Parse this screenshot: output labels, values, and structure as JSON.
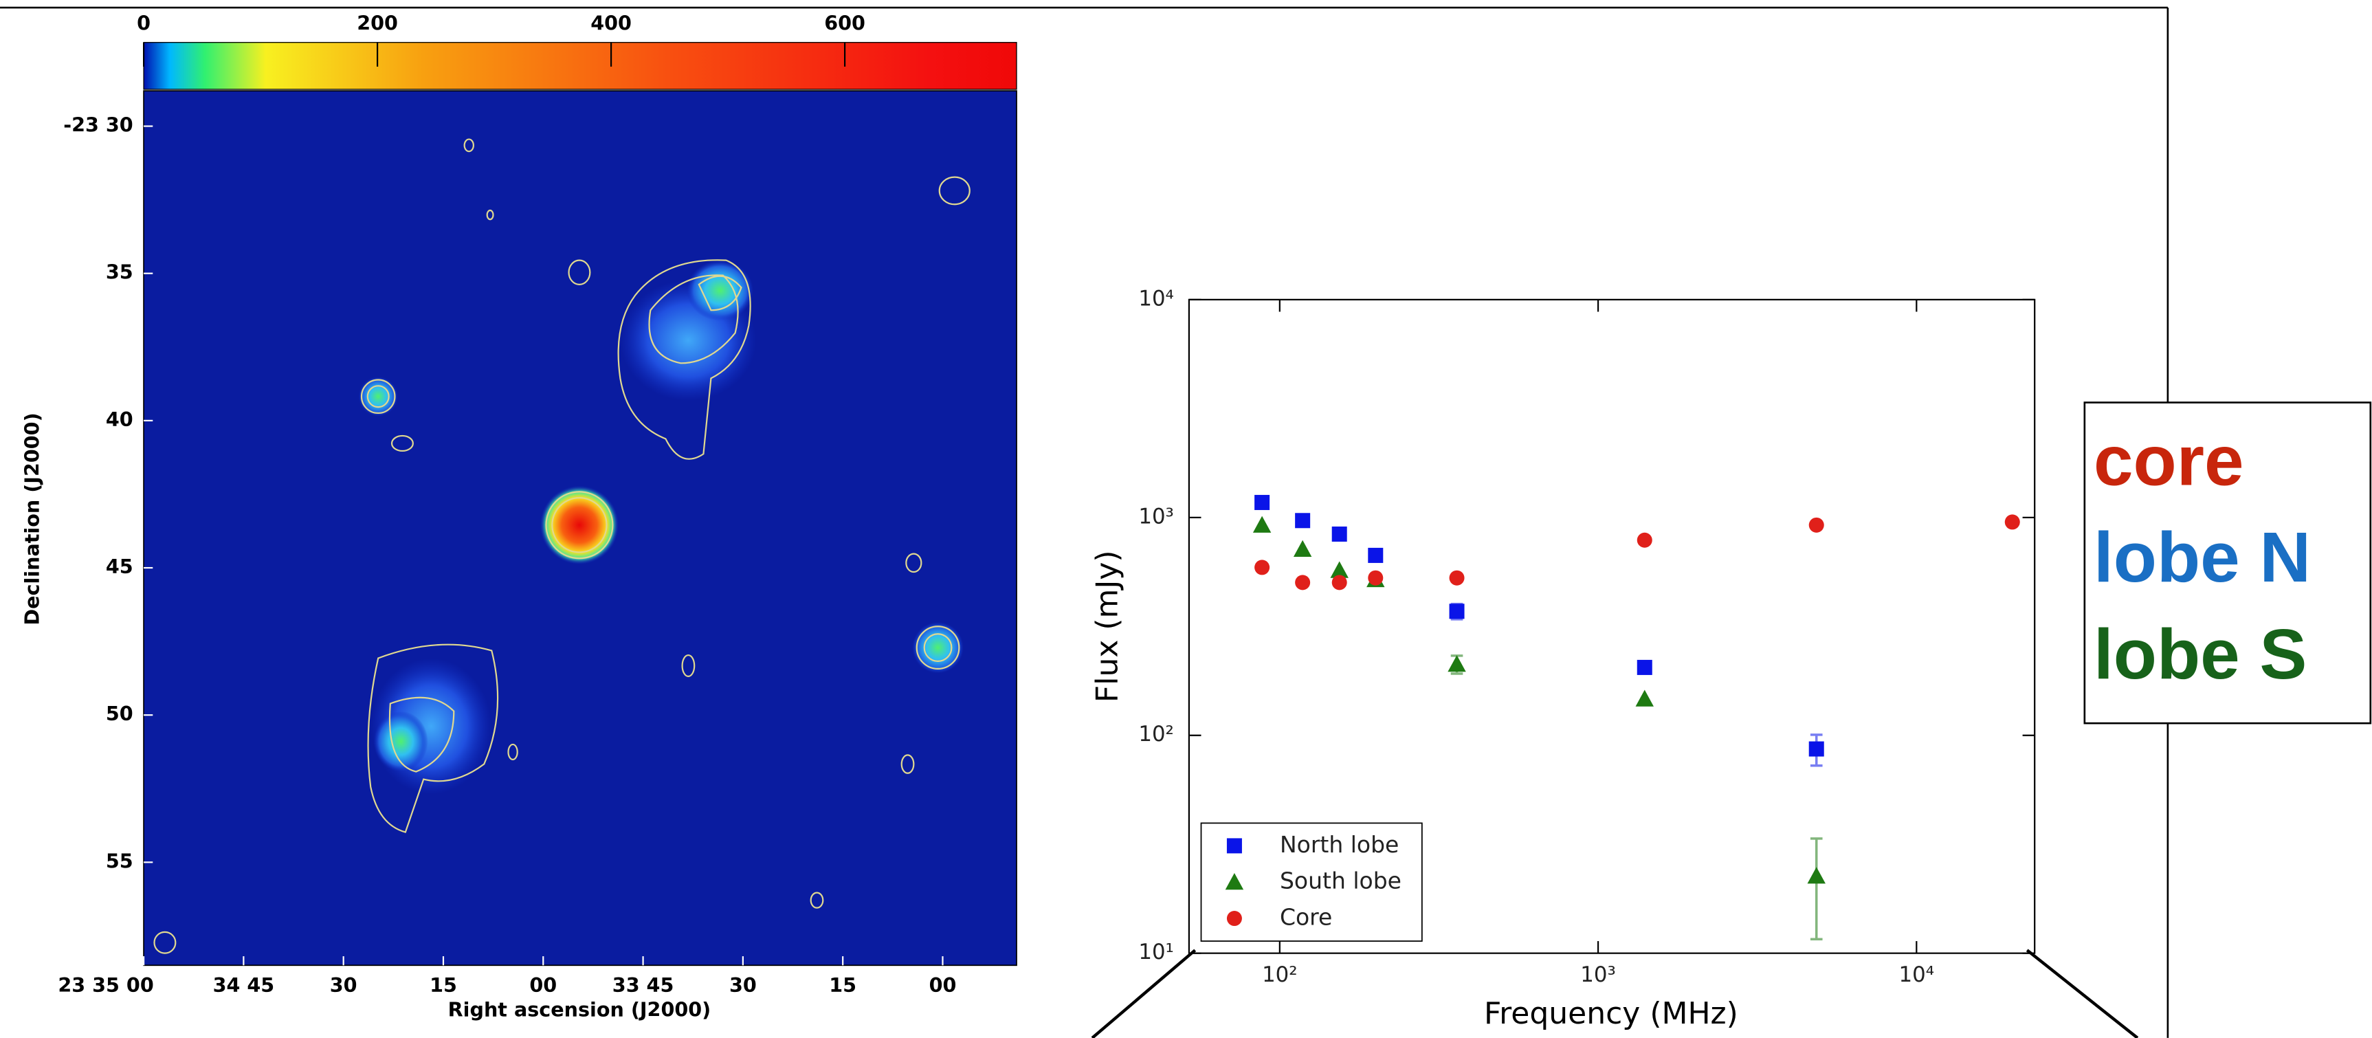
{
  "chart_data": [
    {
      "type": "image",
      "xlabel": "Right ascension (J2000)",
      "ylabel": "Declination (J2000)",
      "xlim": [
        180,
        48.9
      ],
      "xticks": [
        {
          "value": 180,
          "label": "23 35 00"
        },
        {
          "value": 165,
          "label": "34 45"
        },
        {
          "value": 150,
          "label": "30"
        },
        {
          "value": 135,
          "label": "15"
        },
        {
          "value": 120,
          "label": "00"
        },
        {
          "value": 105,
          "label": "33 45"
        },
        {
          "value": 90,
          "label": "30"
        },
        {
          "value": 75,
          "label": "15"
        },
        {
          "value": 60,
          "label": "00"
        }
      ],
      "ylim": [
        58.5,
        28.8
      ],
      "yticks": [
        {
          "value": 30,
          "label": "-23 30"
        },
        35,
        40,
        45,
        50,
        55
      ],
      "colorbar": {
        "lim": [
          0,
          747
        ],
        "ticks": [
          0,
          200,
          400,
          600
        ]
      }
    },
    {
      "type": "scatter",
      "xlabel": "Frequency (MHz)",
      "ylabel": "Flux (mJy)",
      "xscale": "log",
      "yscale": "log",
      "xlim": [
        51.9,
        23500
      ],
      "ylim": [
        10,
        10000
      ],
      "xticks": [
        {
          "value": 100,
          "label": "10²"
        },
        {
          "value": 1000,
          "label": "10³"
        },
        {
          "value": 10000,
          "label": "10⁴"
        }
      ],
      "yticks": [
        {
          "value": 10,
          "label": "10¹"
        },
        {
          "value": 100,
          "label": "10²"
        },
        {
          "value": 1000,
          "label": "10³"
        },
        {
          "value": 10000,
          "label": "10⁴"
        }
      ],
      "legend": "lower left",
      "series": [
        {
          "name": "North lobe",
          "color": "#0a14e8",
          "marker": "square",
          "x": [
            88,
            118,
            154,
            200,
            360,
            1400,
            4850
          ],
          "values": [
            1172,
            968,
            839,
            670,
            371,
            205,
            86.6
          ],
          "errors": [
            null,
            null,
            null,
            null,
            30,
            null,
            14
          ]
        },
        {
          "name": "South lobe",
          "color": "#1e7a12",
          "marker": "triangle",
          "x": [
            88,
            118,
            154,
            200,
            360,
            1400,
            4850
          ],
          "values": [
            923,
            715,
            572,
            519,
            212,
            147,
            22.6
          ],
          "errors": [
            null,
            null,
            null,
            null,
            20,
            null,
            11
          ]
        },
        {
          "name": "Core",
          "color": "#e0201a",
          "marker": "circle",
          "x": [
            88,
            118,
            154,
            200,
            360,
            1400,
            4850,
            20000
          ],
          "values": [
            590,
            503,
            503,
            528,
            528,
            787,
            923,
            953
          ],
          "errors": [
            null,
            null,
            null,
            null,
            null,
            null,
            null,
            null
          ]
        }
      ]
    }
  ],
  "annotation_box": {
    "lines": [
      {
        "text": "core",
        "color": "#c8260c"
      },
      {
        "text": "lobe N",
        "color": "#1a6fc4"
      },
      {
        "text": "lobe S",
        "color": "#17621a"
      }
    ]
  }
}
